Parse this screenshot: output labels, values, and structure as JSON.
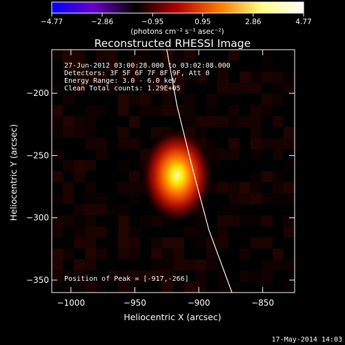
{
  "chart_data": {
    "type": "heatmap",
    "title": "Reconstructed RHESSI Image",
    "xlabel": "Heliocentric X (arcsec)",
    "ylabel": "Heliocentric Y (arcsec)",
    "xlim": [
      -1015,
      -825
    ],
    "ylim": [
      -360,
      -165
    ],
    "x_ticks": [
      -1000,
      -950,
      -900,
      -850
    ],
    "y_ticks": [
      -200,
      -250,
      -300,
      -350
    ],
    "x_tick_labels": [
      "−1000",
      "−950",
      "−900",
      "−850"
    ],
    "y_tick_labels": [
      "−200",
      "−250",
      "−300",
      "−350"
    ],
    "colorbar": {
      "range": [
        -4.77,
        4.77
      ],
      "ticks": [
        -4.77,
        -2.86,
        -0.95,
        0.95,
        2.86,
        4.77
      ],
      "tick_labels": [
        "−4.77",
        "−2.86",
        "−0.95",
        "0.95",
        "2.86",
        "4.77"
      ],
      "unit_label": "(photons cm⁻² s⁻¹ asec⁻²)",
      "colors": [
        "#0000ff",
        "#6a00c8",
        "#000000",
        "#b40000",
        "#ff7a00",
        "#ffff80",
        "#ffffff"
      ]
    },
    "source": {
      "center": [
        -917,
        -266
      ],
      "sigma_x": 9,
      "sigma_y": 13,
      "peak": 4.77
    },
    "limb": [
      [
        -925,
        -165
      ],
      [
        -917,
        -210
      ],
      [
        -905,
        -260
      ],
      [
        -892,
        -310
      ],
      [
        -874,
        -360
      ]
    ],
    "info": [
      "27-Jun-2012 03:00:28.000 to 03:02:08.000",
      "Detectors: 3F 5F 6F 7F 8F 9F, Att 0",
      "Energy Range: 3.0 - 6.0 keV",
      "Clean    Total counts: 1.29E+05"
    ],
    "peak_label": "Position of Peak = [-917,-266]",
    "timestamp": "17-May-2014 14:03"
  }
}
